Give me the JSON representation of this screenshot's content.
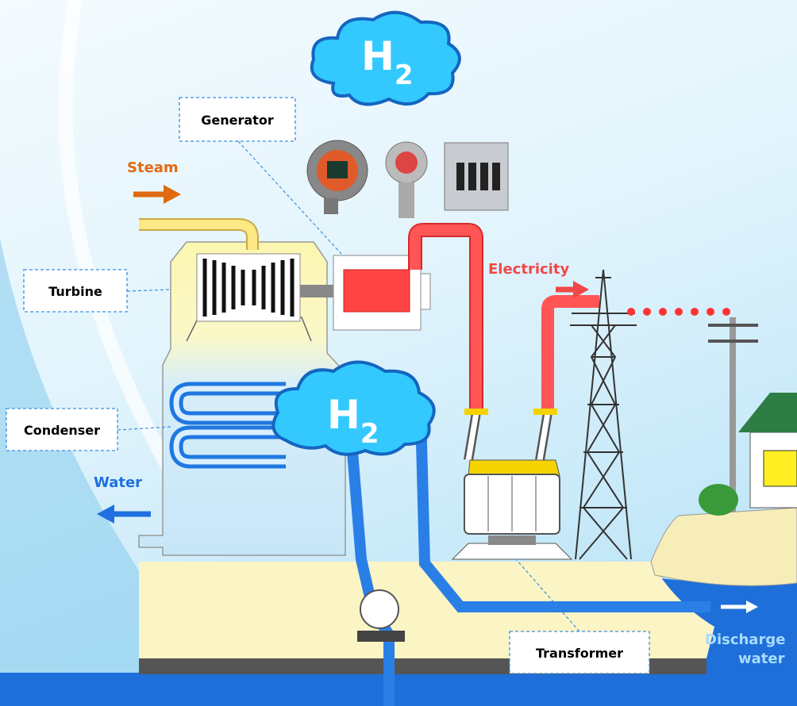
{
  "clouds": [
    {
      "symbol": "H",
      "subscript": "2"
    },
    {
      "symbol": "H",
      "subscript": "2"
    }
  ],
  "labels": {
    "generator": "Generator",
    "turbine": "Turbine",
    "condenser": "Condenser",
    "transformer": "Transformer"
  },
  "flows": {
    "steam": "Steam",
    "electricity": "Electricity",
    "water": "Water",
    "discharge": [
      "Discharge",
      "water"
    ]
  }
}
